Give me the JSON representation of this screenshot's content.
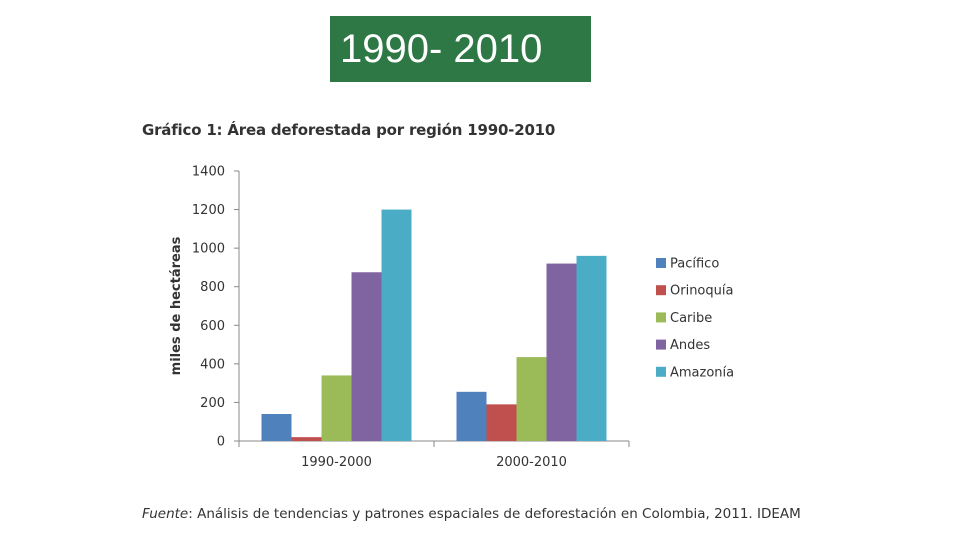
{
  "banner": {
    "text": "1990- 2010",
    "color": "#2e7845"
  },
  "chart_data": {
    "type": "bar",
    "title": "Gráfico 1: Área deforestada por región 1990-2010",
    "ylabel": "miles de hectáreas",
    "xlabel": "",
    "ylim": [
      0,
      1400
    ],
    "yticks": [
      0,
      200,
      400,
      600,
      800,
      1000,
      1200,
      1400
    ],
    "categories": [
      "1990-2000",
      "2000-2010"
    ],
    "series": [
      {
        "name": "Pacífico",
        "color": "#4f81bd",
        "values": [
          140,
          255
        ]
      },
      {
        "name": "Orinoquía",
        "color": "#c0504d",
        "values": [
          20,
          190
        ]
      },
      {
        "name": "Caribe",
        "color": "#9bbb59",
        "values": [
          340,
          435
        ]
      },
      {
        "name": "Andes",
        "color": "#8064a2",
        "values": [
          875,
          920
        ]
      },
      {
        "name": "Amazonía",
        "color": "#4bacc6",
        "values": [
          1200,
          960
        ]
      }
    ],
    "legend_position": "right",
    "grid": false
  },
  "source": {
    "lead": "Fuente",
    "text": ": Análisis de tendencias y patrones espaciales de deforestación en Colombia, 2011. IDEAM"
  }
}
